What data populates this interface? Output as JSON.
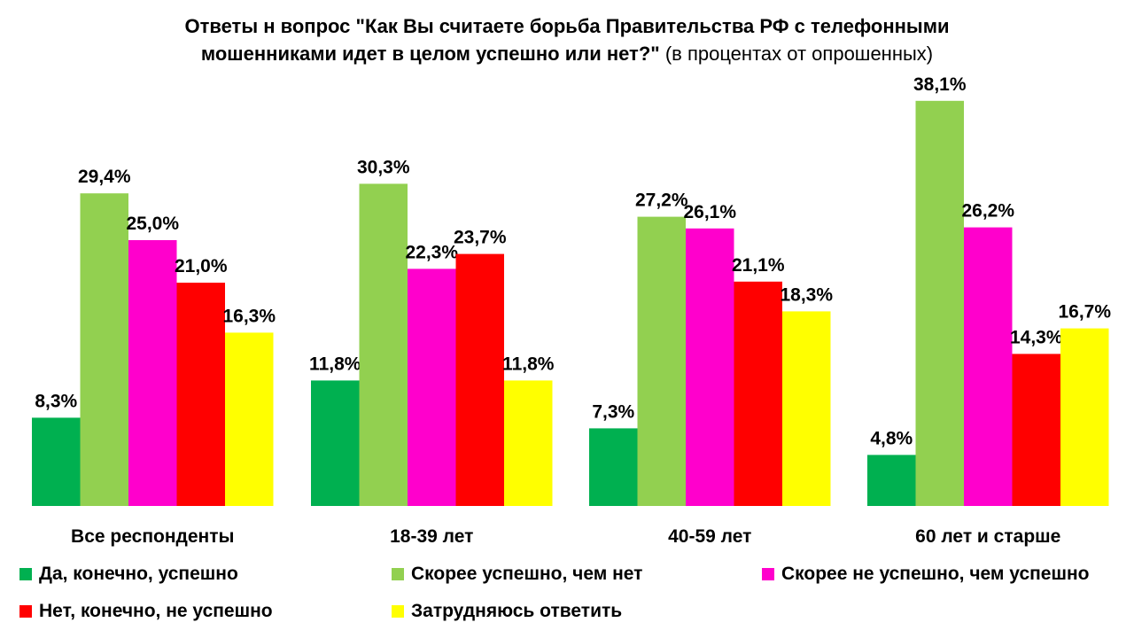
{
  "title": {
    "line1": "Ответы н вопрос \"Как Вы считаете борьба Правительства РФ с телефонными",
    "line2_bold": "мошенниками идет в целом успешно или нет?\"",
    "line2_normal": " (в процентах от опрошенных)"
  },
  "chart_data": {
    "type": "bar",
    "categories": [
      "Все респонденты",
      "18-39 лет",
      "40-59 лет",
      "60 лет и старше"
    ],
    "series": [
      {
        "name": "Да, конечно, успешно",
        "color": "#00b050",
        "values": [
          8.3,
          11.8,
          7.3,
          4.8
        ],
        "labels": [
          "8,3%",
          "11,8%",
          "7,3%",
          "4,8%"
        ]
      },
      {
        "name": "Скорее успешно, чем нет",
        "color": "#92d050",
        "values": [
          29.4,
          30.3,
          27.2,
          38.1
        ],
        "labels": [
          "29,4%",
          "30,3%",
          "27,2%",
          "38,1%"
        ]
      },
      {
        "name": "Скорее не успешно, чем успешно",
        "color": "#ff00cc",
        "values": [
          25.0,
          22.3,
          26.1,
          26.2
        ],
        "labels": [
          "25,0%",
          "22,3%",
          "26,1%",
          "26,2%"
        ]
      },
      {
        "name": "Нет, конечно, не успешно",
        "color": "#ff0000",
        "values": [
          21.0,
          23.7,
          21.1,
          14.3
        ],
        "labels": [
          "21,0%",
          "23,7%",
          "21,1%",
          "14,3%"
        ]
      },
      {
        "name": "Затрудняюсь ответить",
        "color": "#ffff00",
        "values": [
          16.3,
          11.8,
          18.3,
          16.7
        ],
        "labels": [
          "16,3%",
          "11,8%",
          "18,3%",
          "16,7%"
        ]
      }
    ],
    "ylim": [
      0,
      40
    ],
    "grid": false,
    "legend_position": "bottom"
  }
}
